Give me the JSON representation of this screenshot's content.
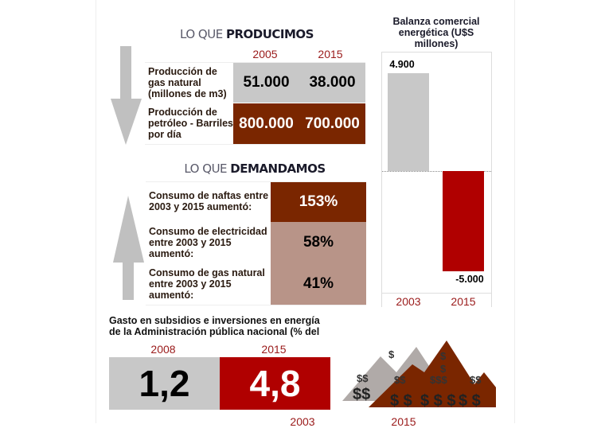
{
  "production": {
    "title_light": "LO QUE ",
    "title_bold": "PRODUCIMOS",
    "years": [
      "2005",
      "2015"
    ],
    "rows": [
      {
        "label": "Producción de gas natural (millones de m3)",
        "values": [
          "51.000",
          "38.000"
        ],
        "color": "#c8c8c8"
      },
      {
        "label": "Producción de petróleo - Barriles por día",
        "values": [
          "800.000",
          "700.000"
        ],
        "color": "#7a2600"
      }
    ],
    "arrow": "arrow-down-icon"
  },
  "demand": {
    "title_light": "LO QUE ",
    "title_bold": "DEMANDAMOS",
    "rows": [
      {
        "label": "Consumo de naftas entre 2003 y 2015 aumentó:",
        "value": "153%",
        "color": "#7a2600"
      },
      {
        "label": "Consumo de electricidad entre 2003 y 2015 aumentó:",
        "value": "58%",
        "color": "#b89488"
      },
      {
        "label": "Consumo de gas natural entre 2003 y 2015 aumentó:",
        "value": "41%",
        "color": "#b89488"
      }
    ],
    "arrow": "arrow-up-icon"
  },
  "chart_data": {
    "type": "bar",
    "title": "Balanza comercial energética (U$S millones)",
    "categories": [
      "2003",
      "2015"
    ],
    "values": [
      4900,
      -5000
    ],
    "value_labels": [
      "4.900",
      "-5.000"
    ],
    "colors": [
      "#c8c8c8",
      "#b00000"
    ],
    "ylim": [
      -5000,
      4900
    ]
  },
  "subsidies": {
    "title": "Gasto en subsidios e inversiones en energía de la Administración pública nacional (% del PBI)",
    "years": [
      "2008",
      "2015"
    ],
    "values": [
      "1,2",
      "4,8"
    ],
    "colors": [
      "#c8c8c8",
      "#b00000"
    ],
    "icon": "money-mountains-icon"
  },
  "footer_years": [
    "2003",
    "2015"
  ]
}
